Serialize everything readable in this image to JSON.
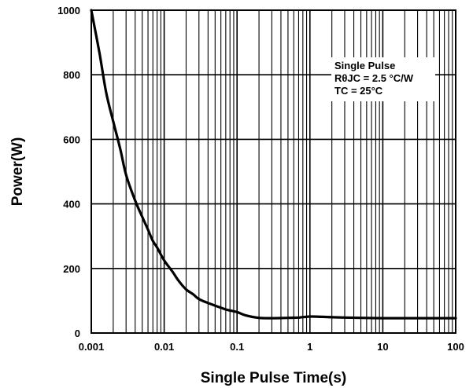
{
  "chart_data": {
    "type": "line",
    "title": "",
    "xlabel": "Single Pulse Time(s)",
    "ylabel": "Power(W)",
    "xscale": "log",
    "xlim": [
      0.001,
      100
    ],
    "ylim": [
      0,
      1000
    ],
    "x_ticks": [
      "0.001",
      "0.01",
      "0.1",
      "1",
      "10",
      "100"
    ],
    "y_ticks": [
      "0",
      "200",
      "400",
      "600",
      "800",
      "1000"
    ],
    "grid": true,
    "annotation": {
      "lines": [
        "Single Pulse",
        "RθJC = 2.5 °C/W",
        "TC = 25°C"
      ],
      "placement": "top-right"
    },
    "series": [
      {
        "x": [
          0.001,
          0.0013,
          0.0016,
          0.002,
          0.0025,
          0.003,
          0.004,
          0.005,
          0.006,
          0.007,
          0.008,
          0.01,
          0.013,
          0.016,
          0.02,
          0.025,
          0.03,
          0.04,
          0.05,
          0.07,
          0.1,
          0.13,
          0.2,
          0.3,
          0.5,
          0.7,
          1,
          1.5,
          2,
          3,
          5,
          10,
          20,
          50,
          100
        ],
        "y": [
          1000,
          865,
          745,
          655,
          570,
          490,
          410,
          360,
          320,
          285,
          265,
          225,
          190,
          160,
          135,
          120,
          105,
          93,
          85,
          73,
          65,
          55,
          47,
          46,
          47,
          48,
          51,
          50,
          49,
          48,
          47,
          46,
          46,
          46,
          46
        ]
      }
    ]
  }
}
